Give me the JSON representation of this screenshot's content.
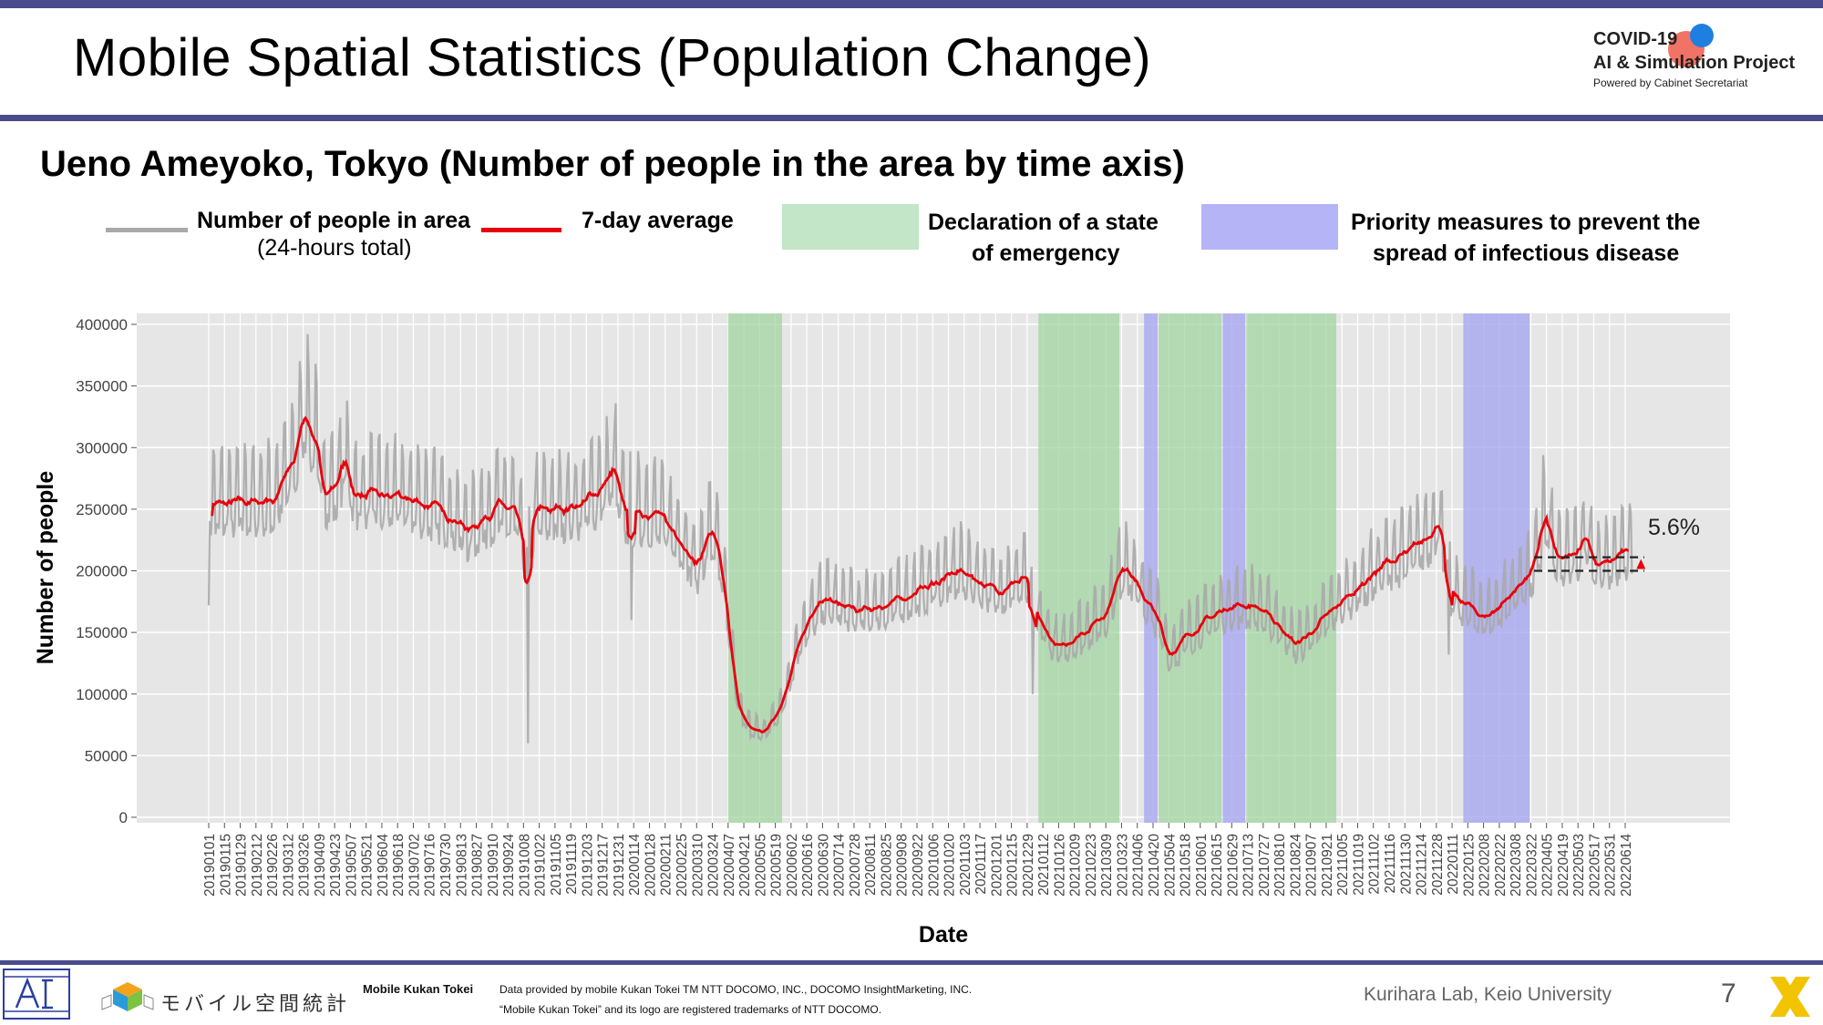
{
  "header": {
    "title": "Mobile Spatial Statistics (Population Change)"
  },
  "logo": {
    "line1": "COVID-19",
    "line2": "AI & Simulation Project",
    "line3": "Powered by Cabinet Secretariat"
  },
  "subtitle": "Ueno Ameyoko, Tokyo (Number of people in the area by time axis)",
  "legend": {
    "raw_label": "Number of people in area",
    "raw_sub": "(24-hours total)",
    "avg_label": "7-day average",
    "emergency_label_1": "Declaration of a state",
    "emergency_label_2": "of emergency",
    "priority_label_1": "Priority measures to prevent the",
    "priority_label_2": "spread of infectious disease"
  },
  "colors": {
    "raw": "#a9a9a9",
    "avg": "#e8000b",
    "emergency": "#9fd49f",
    "priority": "#a6a6f0",
    "accent": "#4a4a8c"
  },
  "chart_data": {
    "type": "line",
    "xlabel": "Date",
    "ylabel": "Number of people",
    "ylim": [
      0,
      400000
    ],
    "yticks": [
      0,
      50000,
      100000,
      150000,
      200000,
      250000,
      300000,
      350000,
      400000
    ],
    "grid": true,
    "annotation": "5.6%",
    "x_tick_labels": [
      "20190101",
      "20190115",
      "20190129",
      "20190212",
      "20190226",
      "20190312",
      "20190326",
      "20190409",
      "20190423",
      "20190507",
      "20190521",
      "20190604",
      "20190618",
      "20190702",
      "20190716",
      "20190730",
      "20190813",
      "20190827",
      "20190910",
      "20190924",
      "20191008",
      "20191022",
      "20191105",
      "20191119",
      "20191203",
      "20191217",
      "20191231",
      "20200114",
      "20200128",
      "20200211",
      "20200225",
      "20200310",
      "20200324",
      "20200407",
      "20200421",
      "20200505",
      "20200519",
      "20200602",
      "20200616",
      "20200630",
      "20200714",
      "20200728",
      "20200811",
      "20200825",
      "20200908",
      "20200922",
      "20201006",
      "20201020",
      "20201103",
      "20201117",
      "20201201",
      "20201215",
      "20201229",
      "20210112",
      "20210126",
      "20210209",
      "20210223",
      "20210309",
      "20210323",
      "20210406",
      "20210420",
      "20210504",
      "20210518",
      "20210601",
      "20210615",
      "20210629",
      "20210713",
      "20210727",
      "20210810",
      "20210824",
      "20210907",
      "20210921",
      "20211005",
      "20211019",
      "20211102",
      "20211116",
      "20211130",
      "20211214",
      "20211228",
      "20220111",
      "20220125",
      "20220208",
      "20220222",
      "20220308",
      "20220322",
      "20220405",
      "20220419",
      "20220503",
      "20220517",
      "20220531",
      "20220614"
    ],
    "emergency_periods": [
      [
        "2020-04-07",
        "2020-05-25"
      ],
      [
        "2021-01-08",
        "2021-03-21"
      ],
      [
        "2021-04-25",
        "2021-06-20"
      ],
      [
        "2021-07-12",
        "2021-09-30"
      ]
    ],
    "priority_periods": [
      [
        "2021-04-12",
        "2021-04-24"
      ],
      [
        "2021-06-21",
        "2021-07-11"
      ],
      [
        "2022-01-21",
        "2022-03-21"
      ]
    ],
    "series": [
      {
        "name": "Number of people in area",
        "kind": "raw",
        "base_points": [
          [
            "2019-01-01",
            250000
          ],
          [
            "2019-03-01",
            255000
          ],
          [
            "2019-03-20",
            290000
          ],
          [
            "2019-03-27",
            330000
          ],
          [
            "2019-04-05",
            300000
          ],
          [
            "2019-04-15",
            262000
          ],
          [
            "2019-04-25",
            265000
          ],
          [
            "2019-05-01",
            290000
          ],
          [
            "2019-05-10",
            260000
          ],
          [
            "2019-06-01",
            258000
          ],
          [
            "2019-07-01",
            255000
          ],
          [
            "2019-08-01",
            245000
          ],
          [
            "2019-08-20",
            230000
          ],
          [
            "2019-09-15",
            250000
          ],
          [
            "2019-10-01",
            245000
          ],
          [
            "2019-10-12",
            205000
          ],
          [
            "2019-10-18",
            245000
          ],
          [
            "2019-11-10",
            248000
          ],
          [
            "2019-12-01",
            252000
          ],
          [
            "2019-12-20",
            268000
          ],
          [
            "2019-12-28",
            280000
          ],
          [
            "2020-01-05",
            245000
          ],
          [
            "2020-02-01",
            245000
          ],
          [
            "2020-02-25",
            225000
          ],
          [
            "2020-03-10",
            200000
          ],
          [
            "2020-03-20",
            225000
          ],
          [
            "2020-03-26",
            230000
          ],
          [
            "2020-04-05",
            175000
          ],
          [
            "2020-04-15",
            95000
          ],
          [
            "2020-04-25",
            72000
          ],
          [
            "2020-05-10",
            68000
          ],
          [
            "2020-05-25",
            90000
          ],
          [
            "2020-06-10",
            145000
          ],
          [
            "2020-07-01",
            175000
          ],
          [
            "2020-08-01",
            165000
          ],
          [
            "2020-09-01",
            172000
          ],
          [
            "2020-10-01",
            185000
          ],
          [
            "2020-11-01",
            198000
          ],
          [
            "2020-12-01",
            182000
          ],
          [
            "2020-12-28",
            192000
          ],
          [
            "2021-01-08",
            160000
          ],
          [
            "2021-01-25",
            135000
          ],
          [
            "2021-02-20",
            150000
          ],
          [
            "2021-03-10",
            165000
          ],
          [
            "2021-03-25",
            205000
          ],
          [
            "2021-04-10",
            180000
          ],
          [
            "2021-04-24",
            160000
          ],
          [
            "2021-05-05",
            130000
          ],
          [
            "2021-05-20",
            145000
          ],
          [
            "2021-06-10",
            160000
          ],
          [
            "2021-06-28",
            170000
          ],
          [
            "2021-07-20",
            170000
          ],
          [
            "2021-08-10",
            155000
          ],
          [
            "2021-08-25",
            138000
          ],
          [
            "2021-09-10",
            150000
          ],
          [
            "2021-10-01",
            170000
          ],
          [
            "2021-10-20",
            185000
          ],
          [
            "2021-11-15",
            205000
          ],
          [
            "2021-12-01",
            210000
          ],
          [
            "2021-12-20",
            225000
          ],
          [
            "2021-12-31",
            240000
          ],
          [
            "2022-01-10",
            180000
          ],
          [
            "2022-01-25",
            170000
          ],
          [
            "2022-02-10",
            160000
          ],
          [
            "2022-03-01",
            175000
          ],
          [
            "2022-03-25",
            200000
          ],
          [
            "2022-04-05",
            240000
          ],
          [
            "2022-04-15",
            205000
          ],
          [
            "2022-05-01",
            210000
          ],
          [
            "2022-05-10",
            230000
          ],
          [
            "2022-05-20",
            200000
          ],
          [
            "2022-06-20",
            215000
          ]
        ]
      },
      {
        "name": "7-day average",
        "kind": "avg"
      }
    ],
    "reference_lines": [
      200000,
      211000
    ]
  },
  "footer": {
    "brand": "モバイル空間統計",
    "brand_en": "Mobile Kukan Tokei",
    "credit_1": "Data provided by mobile Kukan Tokei TM NTT DOCOMO, INC., DOCOMO InsightMarketing, INC.",
    "credit_2": "“Mobile Kukan Tokei” and its logo are registered trademarks of NTT DOCOMO.",
    "lab": "Kurihara Lab, Keio University",
    "page": "7"
  }
}
